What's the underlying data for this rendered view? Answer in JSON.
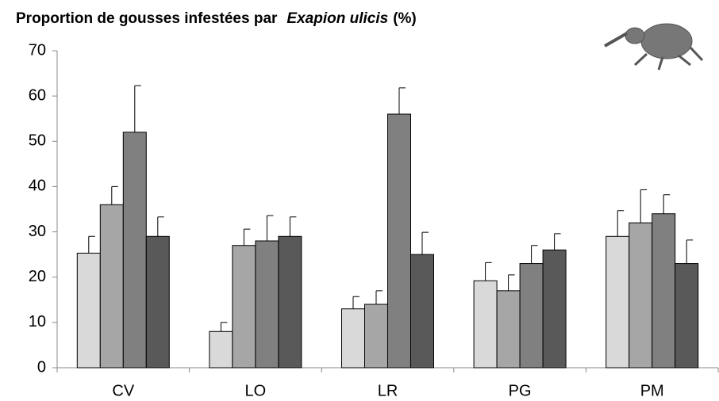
{
  "chart_data": {
    "type": "bar",
    "title": [
      "Proportion de gousses infestées par",
      "Exapion ulicis",
      "(%)"
    ],
    "categories": [
      "CV",
      "LO",
      "LR",
      "PG",
      "PM"
    ],
    "series": [
      {
        "color": "#d9d9d9",
        "values": [
          25.3,
          8,
          13,
          19.2,
          29
        ],
        "errors": [
          3.7,
          2,
          2.7,
          4,
          5.7
        ]
      },
      {
        "color": "#a6a6a6",
        "values": [
          36,
          27,
          14,
          17,
          32
        ],
        "errors": [
          4,
          3.6,
          3,
          3.5,
          7.3
        ]
      },
      {
        "color": "#808080",
        "values": [
          52,
          28,
          56,
          23,
          34
        ],
        "errors": [
          10.3,
          5.6,
          5.8,
          4,
          4.2
        ]
      },
      {
        "color": "#595959",
        "values": [
          29,
          29,
          25,
          26,
          23
        ],
        "errors": [
          4.3,
          4.3,
          4.9,
          3.6,
          5.2
        ]
      }
    ],
    "ylim": [
      0,
      70
    ],
    "yticks": [
      0,
      10,
      20,
      30,
      40,
      50,
      60,
      70
    ],
    "grid": false
  }
}
